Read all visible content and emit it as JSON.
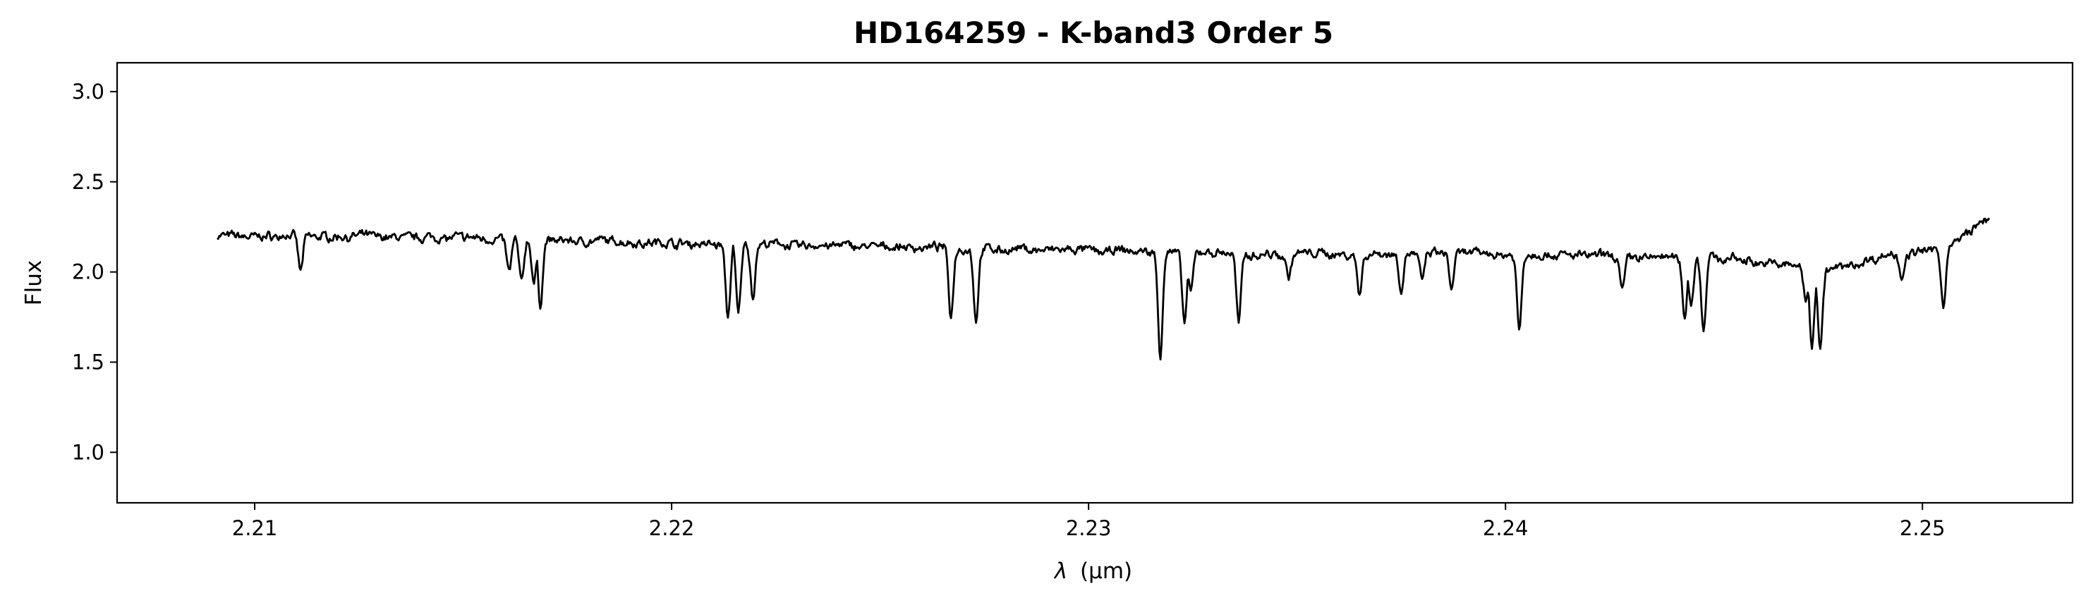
{
  "chart_data": {
    "type": "line",
    "title": "HD164259 - K-band3 Order 5",
    "xlabel_symbol": "λ",
    "xlabel_unit": "(μm)",
    "ylabel": "Flux",
    "xlim": [
      2.2067,
      2.2536
    ],
    "ylim": [
      0.72,
      3.16
    ],
    "xticks": [
      2.21,
      2.22,
      2.23,
      2.24,
      2.25
    ],
    "xtick_labels": [
      "2.21",
      "2.22",
      "2.23",
      "2.24",
      "2.25"
    ],
    "yticks": [
      1.0,
      1.5,
      2.0,
      2.5,
      3.0
    ],
    "ytick_labels": [
      "1.0",
      "1.5",
      "2.0",
      "2.5",
      "3.0"
    ],
    "grid": false,
    "line_color": "#000000",
    "x_range": [
      2.2091,
      2.2516
    ],
    "continuum": [
      [
        2.2091,
        2.2
      ],
      [
        2.214,
        2.195
      ],
      [
        2.22,
        2.16
      ],
      [
        2.225,
        2.14
      ],
      [
        2.23,
        2.115
      ],
      [
        2.235,
        2.1
      ],
      [
        2.24,
        2.1
      ],
      [
        2.245,
        2.08
      ],
      [
        2.2468,
        2.04
      ],
      [
        2.248,
        2.02
      ],
      [
        2.2493,
        2.1
      ],
      [
        2.2505,
        2.12
      ],
      [
        2.2516,
        2.3
      ]
    ],
    "absorption_lines": [
      {
        "x": 2.2111,
        "min": 2.0
      },
      {
        "x": 2.2161,
        "min": 2.0
      },
      {
        "x": 2.2164,
        "min": 1.94
      },
      {
        "x": 2.2167,
        "min": 1.94
      },
      {
        "x": 2.21685,
        "min": 1.81
      },
      {
        "x": 2.22135,
        "min": 1.75
      },
      {
        "x": 2.2216,
        "min": 1.76
      },
      {
        "x": 2.22195,
        "min": 1.86
      },
      {
        "x": 2.2267,
        "min": 1.75
      },
      {
        "x": 2.2273,
        "min": 1.73
      },
      {
        "x": 2.23172,
        "min": 1.54
      },
      {
        "x": 2.2323,
        "min": 1.71
      },
      {
        "x": 2.23245,
        "min": 1.88
      },
      {
        "x": 2.2336,
        "min": 1.71
      },
      {
        "x": 2.2348,
        "min": 1.98
      },
      {
        "x": 2.2365,
        "min": 1.88
      },
      {
        "x": 2.2375,
        "min": 1.9
      },
      {
        "x": 2.238,
        "min": 1.95
      },
      {
        "x": 2.2387,
        "min": 1.9
      },
      {
        "x": 2.24033,
        "min": 1.68
      },
      {
        "x": 2.2428,
        "min": 1.9
      },
      {
        "x": 2.2443,
        "min": 1.75
      },
      {
        "x": 2.24445,
        "min": 1.82
      },
      {
        "x": 2.24475,
        "min": 1.68
      },
      {
        "x": 2.2472,
        "min": 1.83
      },
      {
        "x": 2.24735,
        "min": 1.6
      },
      {
        "x": 2.24755,
        "min": 1.59
      },
      {
        "x": 2.2495,
        "min": 1.98
      },
      {
        "x": 2.2505,
        "min": 1.81
      }
    ]
  }
}
